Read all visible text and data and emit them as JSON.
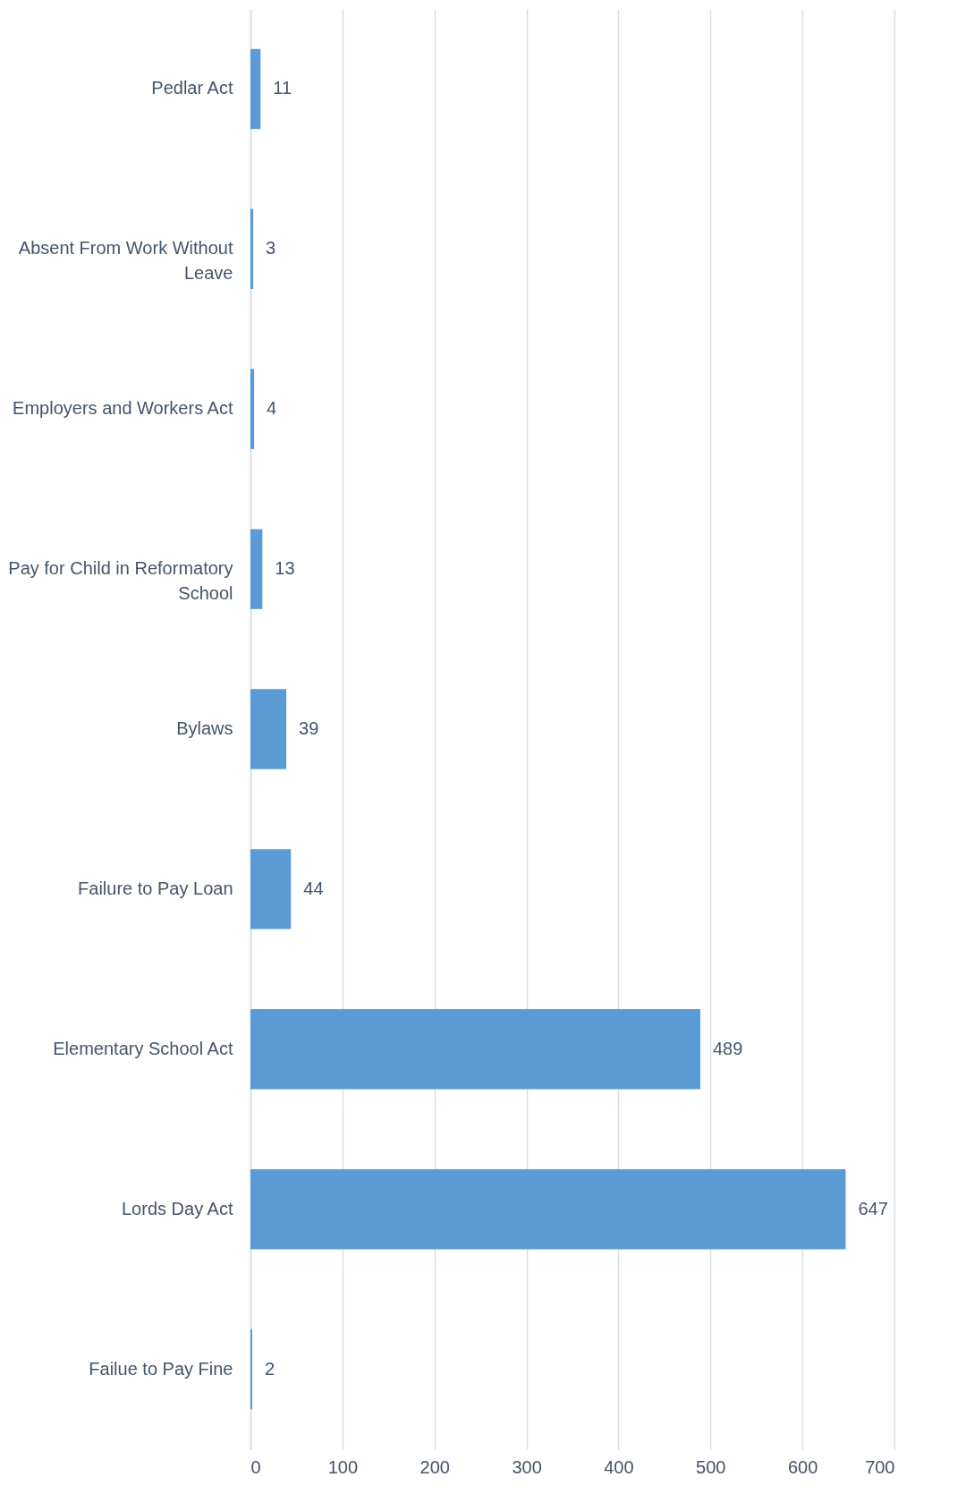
{
  "chart_data": {
    "type": "bar",
    "orientation": "horizontal",
    "categories": [
      "Pedlar Act",
      "Absent From Work Without Leave",
      "Employers and Workers Act",
      "Pay for Child in Reformatory School",
      "Bylaws",
      "Failure to Pay Loan",
      "Elementary School Act",
      "Lords Day Act",
      "Failue to Pay Fine"
    ],
    "values": [
      11,
      3,
      4,
      13,
      39,
      44,
      489,
      647,
      2
    ],
    "color": "#5b9bd5",
    "xlim": [
      0,
      700
    ],
    "xticks": [
      0,
      100,
      200,
      300,
      400,
      500,
      600,
      700
    ],
    "grid": "x",
    "data_labels": true
  }
}
